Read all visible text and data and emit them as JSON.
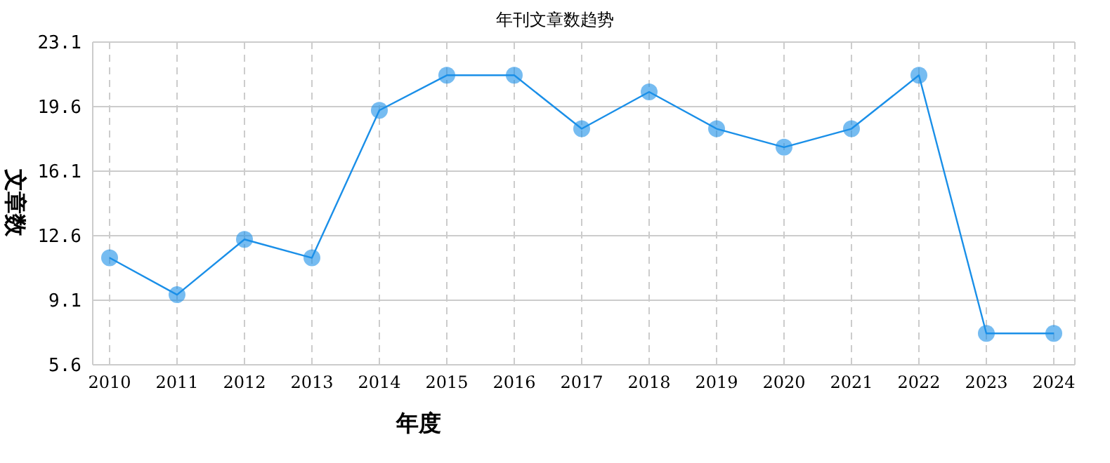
{
  "chart_data": {
    "type": "line",
    "title": "年刊文章数趋势",
    "xlabel": "年度",
    "ylabel": "文章数",
    "categories": [
      "2010",
      "2011",
      "2012",
      "2013",
      "2014",
      "2015",
      "2016",
      "2017",
      "2018",
      "2019",
      "2020",
      "2021",
      "2022",
      "2023",
      "2024"
    ],
    "series": [
      {
        "color": "#1a8fe8",
        "values": [
          11.4,
          9.4,
          12.4,
          11.4,
          19.4,
          21.3,
          21.3,
          18.4,
          20.4,
          18.4,
          17.4,
          18.4,
          21.3,
          7.3,
          7.3
        ]
      }
    ],
    "ylim": [
      5.6,
      23.1
    ],
    "yticks": [
      5.6,
      9.1,
      12.6,
      16.1,
      19.6,
      23.1
    ],
    "grid": true,
    "marker": "circle",
    "line_style": "solid",
    "legend": false
  }
}
